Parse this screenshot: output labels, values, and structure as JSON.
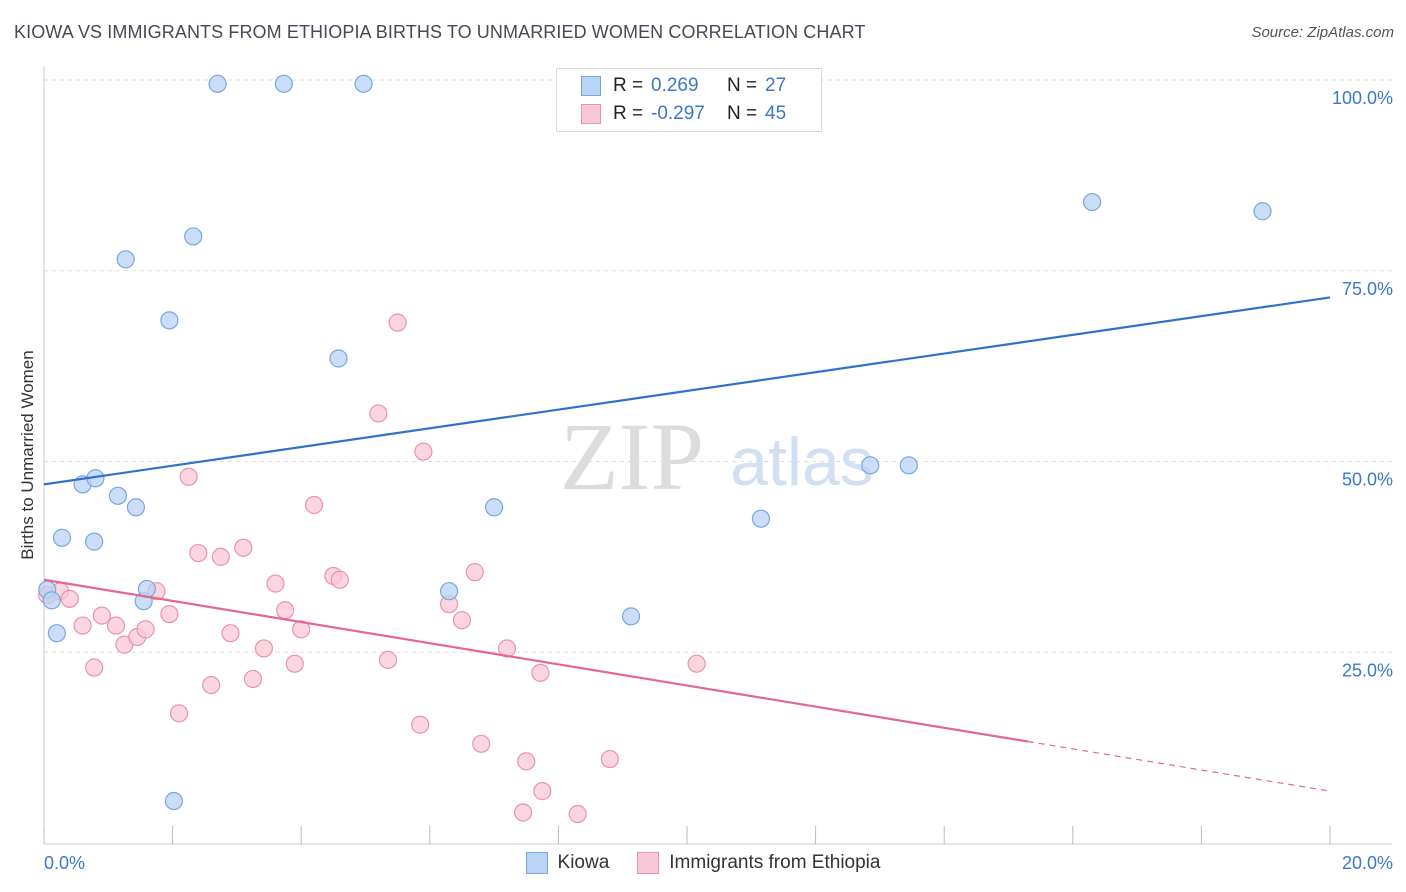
{
  "title": "KIOWA VS IMMIGRANTS FROM ETHIOPIA BIRTHS TO UNMARRIED WOMEN CORRELATION CHART",
  "source": "Source: ZipAtlas.com",
  "watermark": {
    "zip": "ZIP",
    "atlas": "atlas"
  },
  "legend": {
    "rows": [
      {
        "r_label": "R =",
        "r_value": "0.269",
        "n_label": "N =",
        "n_value": "27"
      },
      {
        "r_label": "R =",
        "r_value": "-0.297",
        "n_label": "N =",
        "n_value": "45"
      }
    ]
  },
  "colors": {
    "kiowa_fill": "#b9d3f5",
    "kiowa_stroke": "#7aa6de",
    "kiowa_line": "#2f72cc",
    "eth_fill": "#f9c8d6",
    "eth_stroke": "#eb92af",
    "eth_line": "#e4678f",
    "grid": "#dddddd",
    "axis_text": "#3d78c7"
  },
  "chart_data": {
    "type": "scatter",
    "title": "KIOWA VS IMMIGRANTS FROM ETHIOPIA BIRTHS TO UNMARRIED WOMEN CORRELATION CHART",
    "xlabel": "",
    "ylabel": "Births to Unmarried Women",
    "xlim": [
      0,
      20
    ],
    "ylim": [
      0,
      103
    ],
    "x_tick_labels": [
      "0.0%",
      "20.0%"
    ],
    "y_tick_labels": [
      "100.0%",
      "75.0%",
      "50.0%",
      "25.0%"
    ],
    "y_ticks": [
      100,
      75,
      50,
      25
    ],
    "grid": true,
    "legend_position": "top-center",
    "series": [
      {
        "name": "Kiowa",
        "color": "#b9d3f5",
        "points": [
          [
            0.05,
            33.2
          ],
          [
            0.12,
            31.8
          ],
          [
            0.2,
            27.5
          ],
          [
            0.28,
            40
          ],
          [
            0.6,
            47
          ],
          [
            0.8,
            47.8
          ],
          [
            1.15,
            45.5
          ],
          [
            0.78,
            39.5
          ],
          [
            1.27,
            76.5
          ],
          [
            1.43,
            44
          ],
          [
            1.55,
            31.7
          ],
          [
            1.6,
            33.3
          ],
          [
            1.95,
            68.5
          ],
          [
            2.02,
            5.5
          ],
          [
            2.32,
            79.5
          ],
          [
            2.7,
            99.5
          ],
          [
            3.73,
            99.5
          ],
          [
            4.97,
            99.5
          ],
          [
            4.58,
            63.5
          ],
          [
            6.3,
            33
          ],
          [
            7.0,
            44
          ],
          [
            9.13,
            29.7
          ],
          [
            11.15,
            42.5
          ],
          [
            12.85,
            49.5
          ],
          [
            13.45,
            49.5
          ],
          [
            16.3,
            84
          ],
          [
            18.95,
            82.8
          ]
        ],
        "trend": {
          "x": [
            0,
            20
          ],
          "y": [
            47,
            71.5
          ]
        }
      },
      {
        "name": "Immigrants from Ethiopia",
        "color": "#f9c8d6",
        "points": [
          [
            0.05,
            32.5
          ],
          [
            0.25,
            33
          ],
          [
            0.4,
            32
          ],
          [
            0.6,
            28.5
          ],
          [
            0.78,
            23
          ],
          [
            0.9,
            29.8
          ],
          [
            1.12,
            28.5
          ],
          [
            1.25,
            26
          ],
          [
            1.45,
            27
          ],
          [
            1.58,
            28
          ],
          [
            1.75,
            33
          ],
          [
            1.95,
            30
          ],
          [
            2.1,
            17
          ],
          [
            2.25,
            48
          ],
          [
            2.4,
            38
          ],
          [
            2.6,
            20.7
          ],
          [
            2.75,
            37.5
          ],
          [
            2.9,
            27.5
          ],
          [
            3.1,
            38.7
          ],
          [
            3.25,
            21.5
          ],
          [
            3.42,
            25.5
          ],
          [
            3.6,
            34
          ],
          [
            3.75,
            30.5
          ],
          [
            3.9,
            23.5
          ],
          [
            4.0,
            28
          ],
          [
            4.2,
            44.3
          ],
          [
            4.5,
            35
          ],
          [
            4.6,
            34.5
          ],
          [
            5.2,
            56.3
          ],
          [
            5.35,
            24
          ],
          [
            5.5,
            68.2
          ],
          [
            5.85,
            15.5
          ],
          [
            5.9,
            51.3
          ],
          [
            6.3,
            31.3
          ],
          [
            6.5,
            29.2
          ],
          [
            6.7,
            35.5
          ],
          [
            6.8,
            13
          ],
          [
            7.2,
            25.5
          ],
          [
            7.5,
            10.7
          ],
          [
            7.72,
            22.3
          ],
          [
            7.75,
            6.8
          ],
          [
            7.45,
            4
          ],
          [
            8.3,
            3.8
          ],
          [
            8.8,
            11
          ],
          [
            10.15,
            23.5
          ]
        ],
        "trend": {
          "x": [
            0,
            15.3
          ],
          "y": [
            34.5,
            13.3
          ]
        },
        "trend_dashed": {
          "x": [
            15.3,
            20
          ],
          "y": [
            13.3,
            6.8
          ]
        }
      }
    ]
  },
  "bottom_legend": [
    "Kiowa",
    "Immigrants from Ethiopia"
  ]
}
